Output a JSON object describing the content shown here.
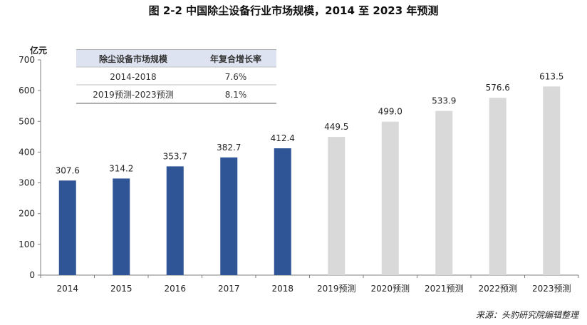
{
  "chart_data": {
    "type": "bar",
    "title": "图  2-2  中国除尘设备行业市场规模，2014 至 2023 年预测",
    "unit": "亿元",
    "categories": [
      "2014",
      "2015",
      "2016",
      "2017",
      "2018",
      "2019预测",
      "2020预测",
      "2021预测",
      "2022预测",
      "2023预测"
    ],
    "values": [
      307.6,
      314.2,
      353.7,
      382.7,
      412.4,
      449.5,
      499.0,
      533.9,
      576.6,
      613.5
    ],
    "value_labels": [
      "307.6",
      "314.2",
      "353.7",
      "382.7",
      "412.4",
      "449.5",
      "499.0",
      "533.9",
      "576.6",
      "613.5"
    ],
    "actual_count": 5,
    "ylim": [
      0,
      700
    ],
    "yticks": [
      0,
      100,
      200,
      300,
      400,
      500,
      600,
      700
    ],
    "grid": false,
    "legend": "none",
    "colors": {
      "actual": "#2f5597",
      "forecast": "#d9d9d9"
    },
    "table": {
      "headers": [
        "除尘设备市场规模",
        "年复合增长率"
      ],
      "rows": [
        [
          "2014-2018",
          "7.6%"
        ],
        [
          "2019预测-2023预测",
          "8.1%"
        ]
      ]
    },
    "source": "来源：头豹研究院编辑整理"
  }
}
